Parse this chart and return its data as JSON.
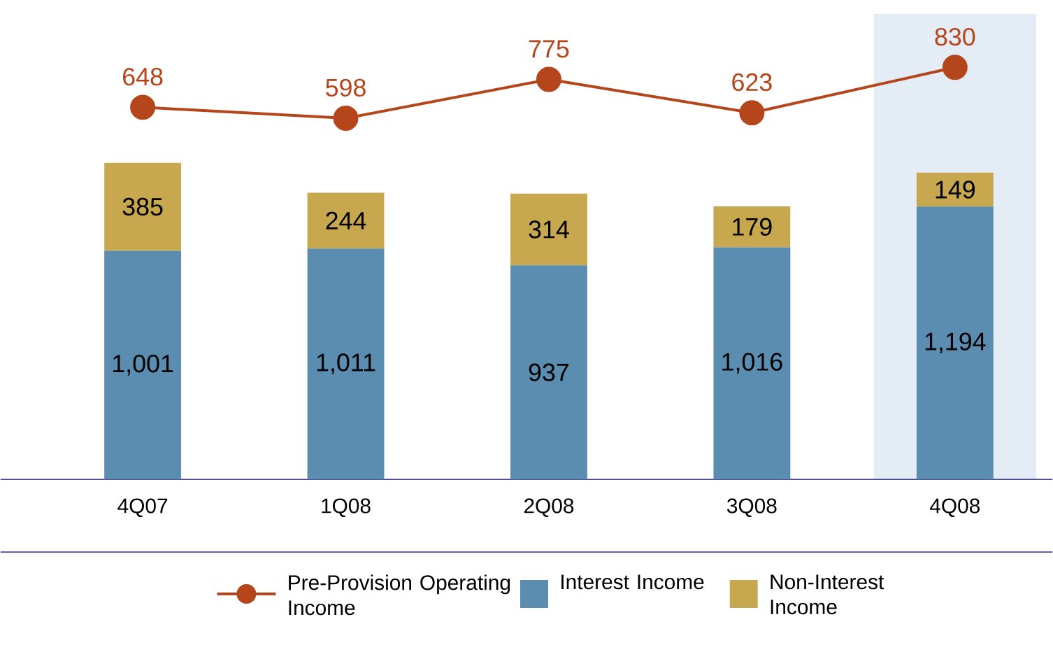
{
  "chart_data": [
    {
      "type": "bar",
      "stacked": true,
      "categories": [
        "4Q07",
        "1Q08",
        "2Q08",
        "3Q08",
        "4Q08"
      ],
      "series": [
        {
          "name": "Interest Income",
          "color": "#5b8db0",
          "values": [
            1001,
            1011,
            937,
            1016,
            1194
          ],
          "value_labels": [
            "1,001",
            "1,011",
            "937",
            "1,016",
            "1,194"
          ]
        },
        {
          "name": "Non-Interest Income",
          "color": "#c8a84e",
          "values": [
            385,
            244,
            314,
            179,
            149
          ],
          "value_labels": [
            "385",
            "244",
            "314",
            "179",
            "149"
          ]
        }
      ],
      "tick_labels": "x",
      "legend": "bottom",
      "bands": [
        {
          "axis": "x",
          "from": "4Q08",
          "to": "4Q08",
          "color": "#e4edf5"
        }
      ]
    },
    {
      "type": "line",
      "categories": [
        null,
        null,
        null,
        null,
        null
      ],
      "marker": "circle",
      "tick_labels": false,
      "legend": "bottom",
      "series": [
        {
          "name": "Pre-Provision Operating Income",
          "color": "#b5451b",
          "values": [
            648,
            598,
            775,
            623,
            830
          ],
          "value_labels": [
            "648",
            "598",
            "775",
            "623",
            "830"
          ]
        }
      ]
    }
  ]
}
